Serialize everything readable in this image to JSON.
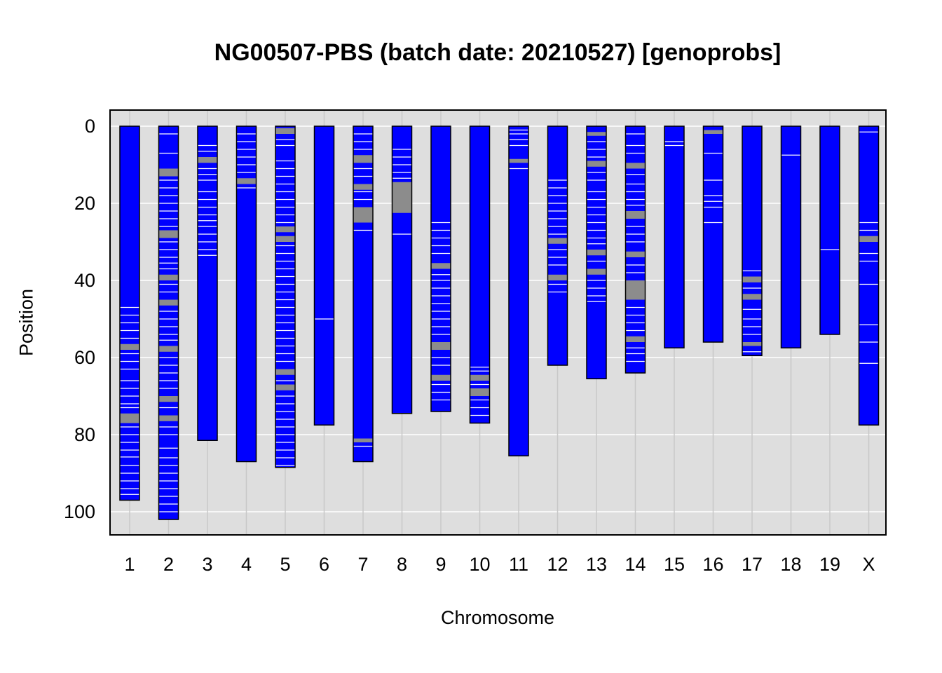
{
  "chart_data": {
    "type": "chromosome-ideogram",
    "title": "NG00507-PBS (batch date: 20210527) [genoprobs]",
    "xlabel": "Chromosome",
    "ylabel": "Position",
    "ylim": [
      0,
      105.5
    ],
    "y_inverted": true,
    "y_ticks": [
      0,
      20,
      40,
      60,
      80,
      100
    ],
    "grid": true,
    "colors": {
      "panel_bg": "#dedede",
      "bar": "#0000ff",
      "heterozygous": "#8c8c8c",
      "crossover": "#ffffff",
      "grid": "#ffffff",
      "vgrid": "#c8c8c8"
    },
    "chromosomes": [
      {
        "name": "1",
        "length": 97,
        "gray": [
          [
            56.5,
            58
          ],
          [
            74.5,
            77
          ]
        ],
        "white": [
          47,
          49,
          51,
          53,
          55,
          59,
          61,
          63,
          66,
          68,
          70,
          72,
          73,
          78,
          80,
          82,
          84,
          85.8,
          88,
          90,
          92,
          94,
          95.5
        ]
      },
      {
        "name": "2",
        "length": 102,
        "gray": [
          [
            11,
            13
          ],
          [
            27,
            29
          ],
          [
            38.5,
            40
          ],
          [
            45,
            46.5
          ],
          [
            57,
            58.5
          ],
          [
            70,
            71.5
          ],
          [
            75,
            76.5
          ]
        ],
        "white": [
          2,
          7,
          14,
          16,
          18,
          20,
          22,
          24,
          26,
          30,
          32,
          34,
          35.5,
          37,
          41,
          43,
          48,
          50,
          52,
          54,
          55.5,
          60,
          62,
          64,
          66,
          68,
          73,
          78,
          80,
          83.5,
          86,
          88,
          90,
          92,
          94,
          96,
          98,
          100
        ]
      },
      {
        "name": "3",
        "length": 81.5,
        "gray": [
          [
            8,
            9.5
          ]
        ],
        "white": [
          5,
          6.5,
          11,
          12.5,
          14,
          17,
          19,
          21,
          23,
          24.5,
          26,
          28,
          30,
          32,
          33.5
        ]
      },
      {
        "name": "4",
        "length": 87,
        "gray": [
          [
            13.5,
            15
          ]
        ],
        "white": [
          2,
          4,
          6,
          8,
          10,
          12,
          16
        ]
      },
      {
        "name": "5",
        "length": 88.5,
        "gray": [
          [
            0.5,
            2
          ],
          [
            26,
            27.5
          ],
          [
            28.5,
            30
          ],
          [
            63,
            64.5
          ],
          [
            67,
            68.5
          ]
        ],
        "white": [
          3.5,
          5,
          9,
          11,
          13,
          15,
          17,
          19,
          21,
          23,
          25,
          31,
          33,
          35,
          37,
          39,
          41,
          43,
          45,
          47,
          49,
          51,
          53,
          55,
          57,
          59,
          61,
          66,
          70,
          72,
          74,
          76,
          78,
          80,
          82,
          84,
          86,
          88
        ]
      },
      {
        "name": "6",
        "length": 77.5,
        "gray": [],
        "white": [
          50
        ]
      },
      {
        "name": "7",
        "length": 87,
        "gray": [
          [
            7.5,
            9.5
          ],
          [
            15,
            16.5
          ],
          [
            21,
            25
          ],
          [
            81,
            82
          ]
        ],
        "white": [
          2,
          4,
          6,
          11,
          13,
          17,
          19,
          27,
          83
        ]
      },
      {
        "name": "8",
        "length": 74.5,
        "gray": [
          [
            14.5,
            22.5
          ]
        ],
        "white": [
          6,
          8,
          10,
          12,
          13.5,
          28
        ]
      },
      {
        "name": "9",
        "length": 74,
        "gray": [
          [
            35.5,
            37
          ],
          [
            56,
            58
          ],
          [
            64.5,
            66
          ]
        ],
        "white": [
          25,
          27,
          29,
          31,
          33,
          38.5,
          40,
          42,
          44,
          46,
          48,
          50,
          52,
          54,
          60,
          62,
          67,
          69,
          71
        ]
      },
      {
        "name": "10",
        "length": 77,
        "gray": [
          [
            64.5,
            66
          ],
          [
            68,
            70
          ]
        ],
        "white": [
          62.5,
          63.5,
          67,
          71,
          73,
          75
        ]
      },
      {
        "name": "11",
        "length": 85.5,
        "gray": [
          [
            8.5,
            9.5
          ]
        ],
        "white": [
          1,
          2,
          3.5,
          5,
          11
        ]
      },
      {
        "name": "12",
        "length": 62,
        "gray": [
          [
            29,
            30.5
          ],
          [
            38.5,
            40
          ]
        ],
        "white": [
          14,
          16,
          18,
          20,
          22,
          24,
          26,
          28,
          32,
          34,
          36,
          41,
          43
        ]
      },
      {
        "name": "13",
        "length": 65.5,
        "gray": [
          [
            1.5,
            2.5
          ],
          [
            9,
            10.5
          ],
          [
            32,
            33.5
          ],
          [
            37,
            38.5
          ]
        ],
        "white": [
          4,
          6,
          8,
          12,
          14,
          17,
          19,
          21,
          23,
          25,
          27,
          29,
          30.5,
          35,
          40,
          42,
          44,
          45.5
        ]
      },
      {
        "name": "14",
        "length": 64,
        "gray": [
          [
            9.5,
            11
          ],
          [
            22,
            24
          ],
          [
            32.5,
            34
          ],
          [
            40,
            45
          ],
          [
            54.5,
            56
          ]
        ],
        "white": [
          2,
          5,
          7,
          12.5,
          15,
          17,
          19,
          20.5,
          26,
          28,
          30,
          36,
          38,
          47,
          49,
          51,
          53,
          57.5,
          59,
          61
        ]
      },
      {
        "name": "15",
        "length": 57.5,
        "gray": [],
        "white": [
          4,
          5
        ]
      },
      {
        "name": "16",
        "length": 56,
        "gray": [
          [
            1,
            2
          ]
        ],
        "white": [
          7,
          14,
          18,
          19.5,
          21,
          25
        ]
      },
      {
        "name": "17",
        "length": 59.5,
        "gray": [
          [
            39,
            40.5
          ],
          [
            43.5,
            45
          ],
          [
            56,
            57
          ]
        ],
        "white": [
          37.5,
          42,
          47.5,
          50,
          52,
          54,
          58.5
        ]
      },
      {
        "name": "18",
        "length": 57.5,
        "gray": [],
        "white": [
          7.5
        ]
      },
      {
        "name": "19",
        "length": 54,
        "gray": [],
        "white": [
          32
        ]
      },
      {
        "name": "X",
        "length": 77.5,
        "gray": [
          [
            28.5,
            30
          ]
        ],
        "white": [
          1.5,
          25,
          27,
          33,
          35,
          41,
          51.5,
          56,
          61.5
        ]
      }
    ]
  }
}
